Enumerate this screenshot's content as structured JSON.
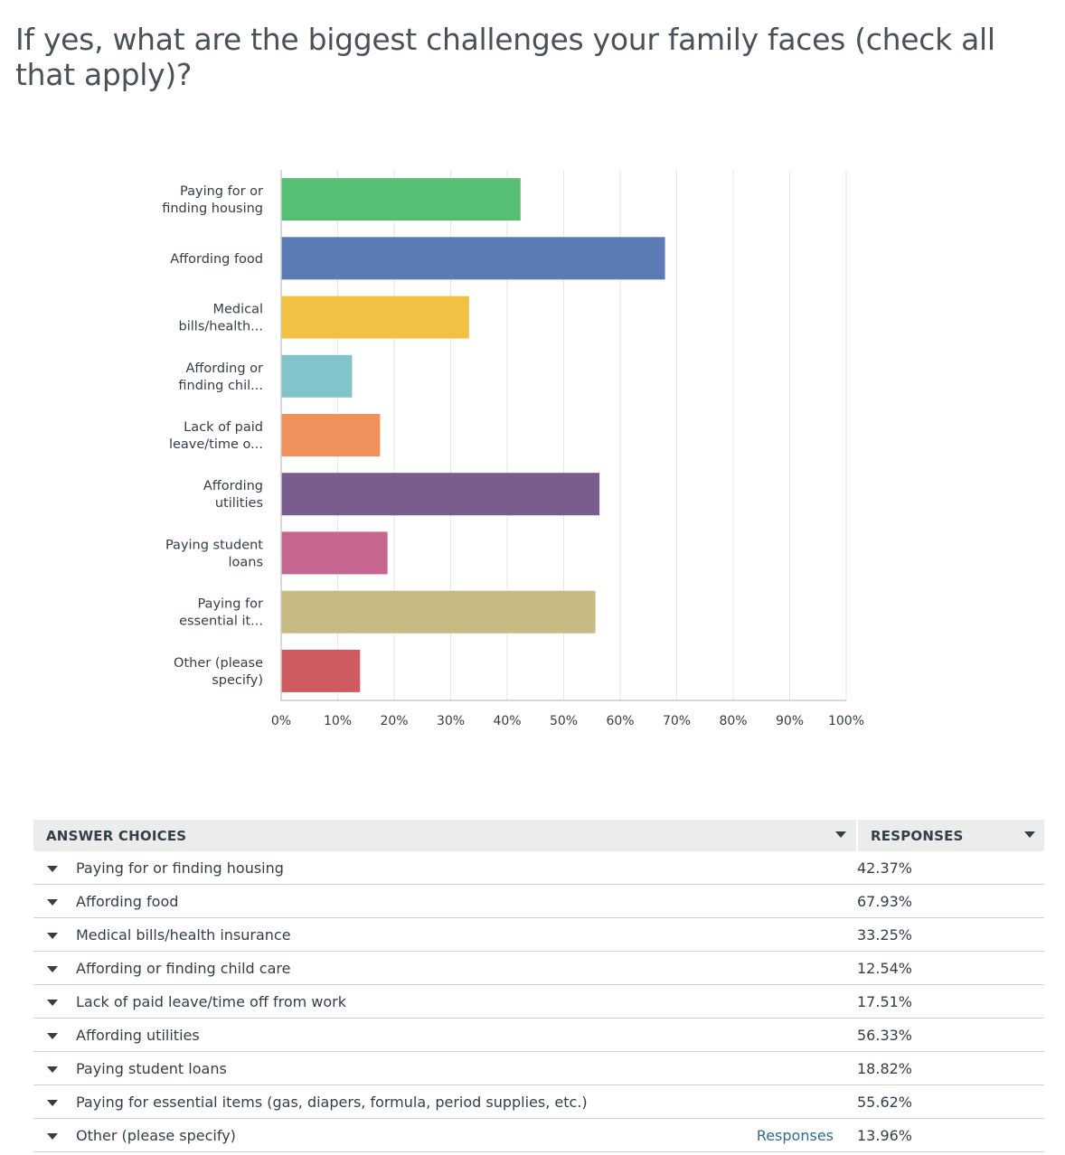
{
  "question": {
    "text": "If yes, what are the biggest challenges your family faces (check all that apply)?"
  },
  "chart_data": {
    "type": "bar",
    "orientation": "horizontal",
    "title": "",
    "xlabel": "",
    "ylabel": "",
    "xlim": [
      0,
      100
    ],
    "x_ticks": [
      "0%",
      "10%",
      "20%",
      "30%",
      "40%",
      "50%",
      "60%",
      "70%",
      "80%",
      "90%",
      "100%"
    ],
    "grid": true,
    "categories": [
      [
        "Paying for or",
        "finding housing"
      ],
      [
        "Affording food"
      ],
      [
        "Medical",
        "bills/health..."
      ],
      [
        "Affording or",
        "finding chil..."
      ],
      [
        "Lack of paid",
        "leave/time o..."
      ],
      [
        "Affording",
        "utilities"
      ],
      [
        "Paying student",
        "loans"
      ],
      [
        "Paying for",
        "essential it..."
      ],
      [
        "Other (please",
        "specify)"
      ]
    ],
    "values": [
      42.37,
      67.93,
      33.25,
      12.54,
      17.51,
      56.33,
      18.82,
      55.62,
      13.96
    ],
    "colors": [
      "#57bf74",
      "#5a7bb4",
      "#f0c142",
      "#81c5cb",
      "#f0915b",
      "#7a5d8e",
      "#c66690",
      "#c6bb83",
      "#cf5b60"
    ]
  },
  "table": {
    "headers": {
      "choice": "ANSWER CHOICES",
      "responses": "RESPONSES"
    },
    "rows": [
      {
        "choice": "Paying for or finding housing",
        "response": "42.37%",
        "link": ""
      },
      {
        "choice": "Affording food",
        "response": "67.93%",
        "link": ""
      },
      {
        "choice": "Medical bills/health insurance",
        "response": "33.25%",
        "link": ""
      },
      {
        "choice": "Affording or finding child care",
        "response": "12.54%",
        "link": ""
      },
      {
        "choice": "Lack of paid leave/time off from work",
        "response": "17.51%",
        "link": ""
      },
      {
        "choice": "Affording utilities",
        "response": "56.33%",
        "link": ""
      },
      {
        "choice": "Paying student loans",
        "response": "18.82%",
        "link": ""
      },
      {
        "choice": "Paying for essential items (gas, diapers, formula, period supplies, etc.)",
        "response": "55.62%",
        "link": ""
      },
      {
        "choice": "Other (please specify)",
        "response": "13.96%",
        "link": "Responses"
      }
    ]
  }
}
